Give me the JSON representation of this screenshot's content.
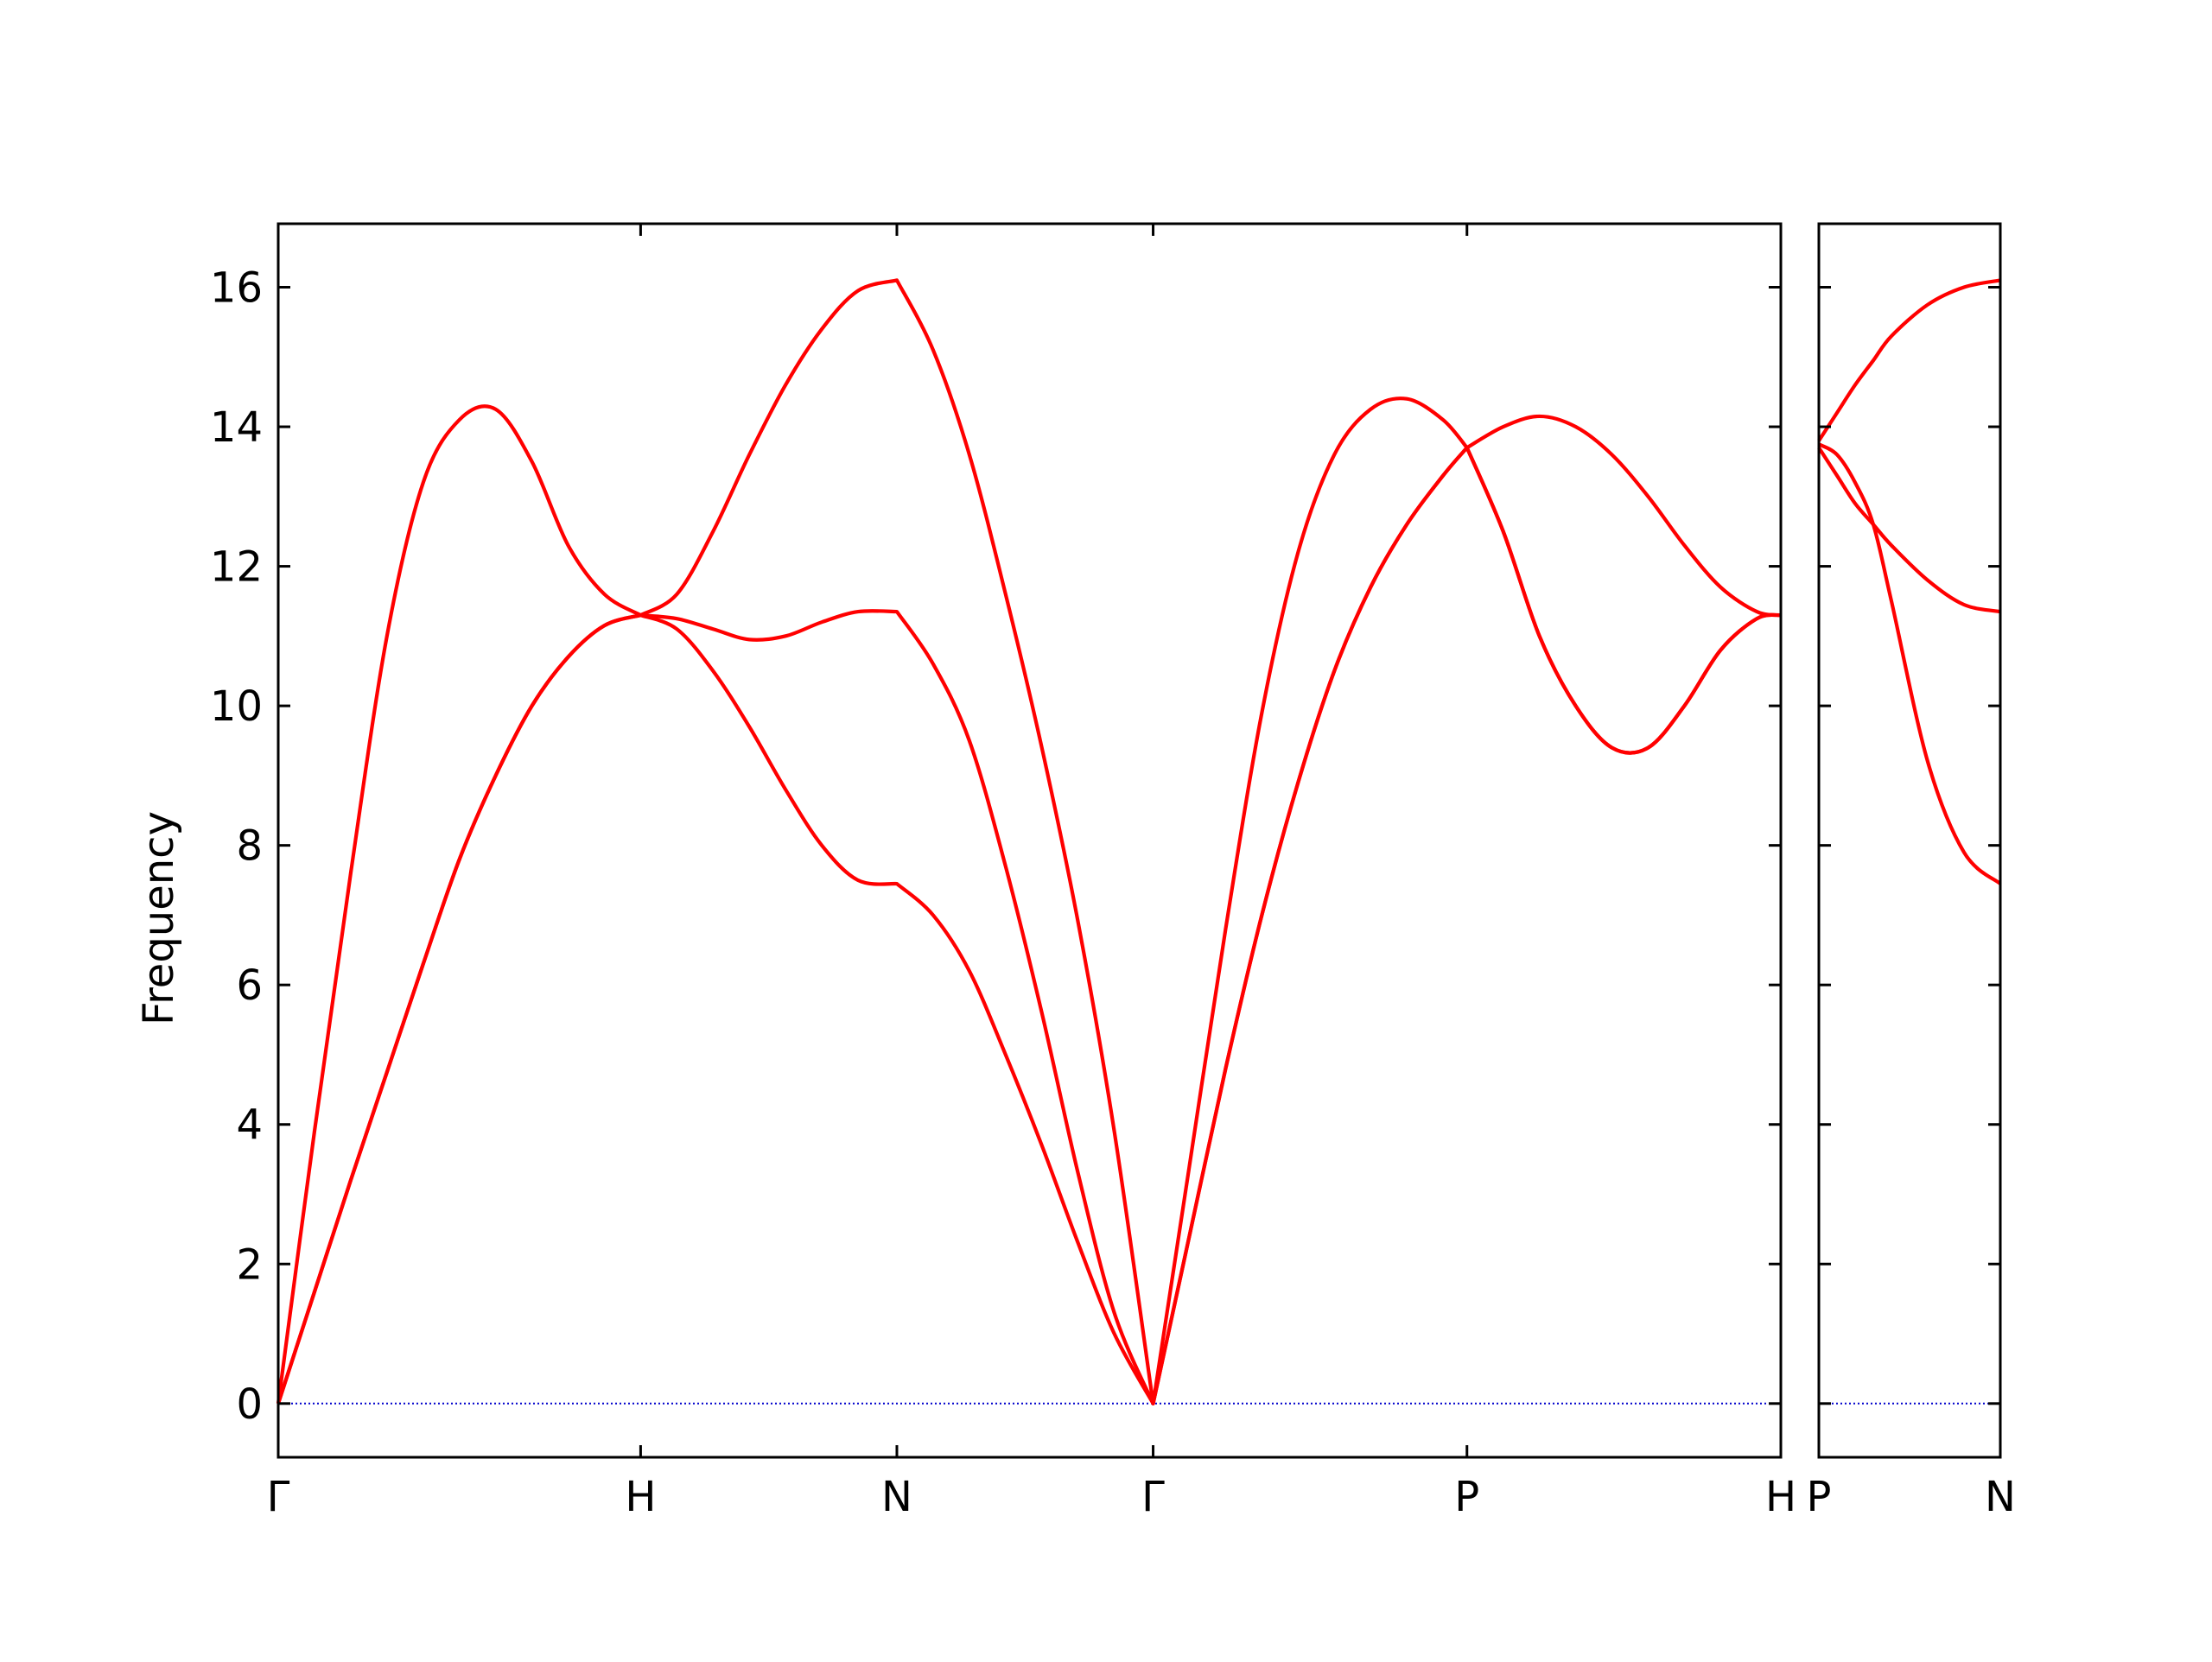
{
  "chart_data": [
    {
      "type": "line",
      "ylabel": "Frequency",
      "xlim": [
        0,
        4.1463
      ],
      "ylim": [
        -0.77,
        16.91
      ],
      "xticks": [
        {
          "value": 0,
          "label": "Γ"
        },
        {
          "value": 1,
          "label": "H"
        },
        {
          "value": 1.7071,
          "label": "N"
        },
        {
          "value": 2.4142,
          "label": "Γ"
        },
        {
          "value": 3.2802,
          "label": "P"
        },
        {
          "value": 4.1463,
          "label": "H"
        }
      ],
      "yticks": [
        0,
        2,
        4,
        6,
        8,
        10,
        12,
        14,
        16
      ],
      "ytick_labels": true,
      "reference_line": 0,
      "reference_color": "#0000cc",
      "x": [
        0,
        0.1,
        0.2,
        0.3,
        0.4,
        0.5,
        0.6,
        0.7,
        0.8,
        0.9,
        1,
        1.1,
        1.2,
        1.3,
        1.4,
        1.5,
        1.6,
        1.7071,
        1.8071,
        1.9071,
        2.0071,
        2.1071,
        2.2071,
        2.3071,
        2.4142,
        2.5142,
        2.6142,
        2.7142,
        2.8142,
        2.9142,
        3.0142,
        3.1142,
        3.2142,
        3.2802,
        3.3802,
        3.4802,
        3.5802,
        3.6802,
        3.7802,
        3.8802,
        3.9802,
        4.0802,
        4.1463
      ],
      "series": [
        {
          "color": "#ff0000",
          "values": [
            0,
            3.9,
            7.6,
            11.0,
            13.2,
            14.1,
            14.25,
            13.5,
            12.3,
            11.6,
            11.3,
            11.6,
            12.5,
            13.6,
            14.6,
            15.4,
            15.95,
            16.1,
            15.1,
            13.6,
            11.6,
            9.4,
            6.9,
            3.9,
            0,
            3.4,
            6.8,
            9.9,
            12.2,
            13.6,
            14.25,
            14.4,
            14.1,
            13.7,
            14.0,
            14.15,
            14.0,
            13.6,
            13.0,
            12.3,
            11.7,
            11.35,
            11.3
          ]
        },
        {
          "color": "#ff0000",
          "values": [
            0,
            1.6,
            3.2,
            4.75,
            6.3,
            7.8,
            9.0,
            10.0,
            10.7,
            11.15,
            11.3,
            11.25,
            11.1,
            10.95,
            11.0,
            11.2,
            11.35,
            11.35,
            10.6,
            9.5,
            7.7,
            5.6,
            3.3,
            1.3,
            0,
            2.4,
            4.8,
            7.0,
            8.9,
            10.5,
            11.7,
            12.6,
            13.3,
            13.7,
            12.5,
            11.0,
            10.0,
            9.4,
            9.4,
            10.0,
            10.8,
            11.25,
            11.3
          ]
        },
        {
          "color": "#ff0000",
          "values": [
            0,
            1.6,
            3.2,
            4.75,
            6.3,
            7.8,
            9.0,
            10.0,
            10.7,
            11.15,
            11.3,
            11.1,
            10.5,
            9.7,
            8.8,
            8.0,
            7.5,
            7.45,
            7.0,
            6.2,
            5.0,
            3.7,
            2.3,
            1.0,
            0,
            2.4,
            4.8,
            7.0,
            8.9,
            10.5,
            11.7,
            12.6,
            13.3,
            13.7,
            12.5,
            11.0,
            10.0,
            9.4,
            9.4,
            10.0,
            10.8,
            11.25,
            11.3
          ]
        }
      ]
    },
    {
      "type": "line",
      "xlim": [
        0,
        0.5
      ],
      "ylim": [
        -0.77,
        16.91
      ],
      "xticks": [
        {
          "value": 0,
          "label": "P"
        },
        {
          "value": 0.5,
          "label": "N"
        }
      ],
      "yticks": [
        0,
        2,
        4,
        6,
        8,
        10,
        12,
        14,
        16
      ],
      "ytick_labels": false,
      "reference_line": 0,
      "reference_color": "#0000cc",
      "x": [
        0,
        0.05,
        0.1,
        0.15,
        0.2,
        0.3,
        0.4,
        0.5
      ],
      "series": [
        {
          "color": "#ff0000",
          "values": [
            13.8,
            14.2,
            14.6,
            14.95,
            15.3,
            15.75,
            16.0,
            16.1
          ]
        },
        {
          "color": "#ff0000",
          "values": [
            13.7,
            13.3,
            12.9,
            12.6,
            12.3,
            11.8,
            11.45,
            11.35
          ]
        },
        {
          "color": "#ff0000",
          "values": [
            13.75,
            13.6,
            13.2,
            12.6,
            11.5,
            9.2,
            7.9,
            7.45
          ]
        }
      ]
    }
  ]
}
